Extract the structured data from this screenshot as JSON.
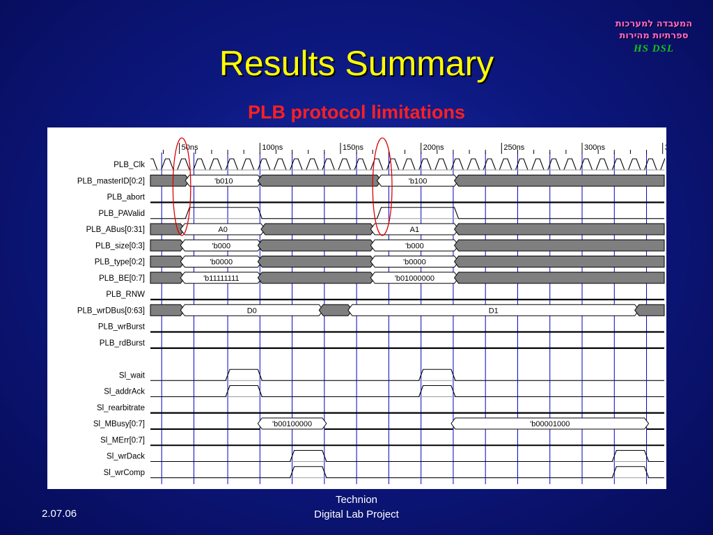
{
  "slide": {
    "title": "Results Summary",
    "subtitle": "PLB protocol limitations"
  },
  "logo": {
    "line1": "המעבדה למערכות",
    "line2": "ספרתיות מהירות",
    "lab_name": "HS DSL"
  },
  "footer": {
    "date": "2.07.06",
    "org_line1": "Technion",
    "org_line2": "Digital Lab Project"
  },
  "colors": {
    "title": "#ffff00",
    "subtitle": "#ff2020",
    "busy_fill": "#7f7f7f",
    "marker": "#0000cc",
    "highlight": "#dd0000"
  },
  "waveform": {
    "time_unit": "ns",
    "time_range": [
      32,
      351
    ],
    "ticks": [
      {
        "t": 50,
        "label": "50ns"
      },
      {
        "t": 100,
        "label": "100ns"
      },
      {
        "t": 150,
        "label": "150ns"
      },
      {
        "t": 200,
        "label": "200ns"
      },
      {
        "t": 250,
        "label": "250ns"
      },
      {
        "t": 300,
        "label": "300ns"
      },
      {
        "t": 350,
        "label": "350n"
      }
    ],
    "clock_period": 10,
    "markers": [
      39,
      59,
      80,
      100,
      120,
      140,
      160,
      180,
      200,
      220,
      240,
      260,
      280,
      300,
      320,
      340
    ],
    "highlights": [
      {
        "t_start": 46,
        "t_end": 57
      },
      {
        "t_start": 170,
        "t_end": 182
      }
    ],
    "signals": [
      {
        "name": "PLB_Clk",
        "type": "clock"
      },
      {
        "name": "PLB_masterID[0:2]",
        "type": "bus",
        "segments": [
          {
            "t0": 32,
            "t1": 55,
            "kind": "busy"
          },
          {
            "t0": 55,
            "t1": 100,
            "kind": "value",
            "label": "'b010"
          },
          {
            "t0": 100,
            "t1": 174,
            "kind": "busy"
          },
          {
            "t0": 174,
            "t1": 222,
            "kind": "value",
            "label": "'b100"
          },
          {
            "t0": 222,
            "t1": 351,
            "kind": "busy"
          }
        ]
      },
      {
        "name": "PLB_abort",
        "type": "bit",
        "points": [
          [
            32,
            0
          ]
        ]
      },
      {
        "name": "PLB_PAValid",
        "type": "bit",
        "points": [
          [
            32,
            0
          ],
          [
            55,
            1
          ],
          [
            100,
            0
          ],
          [
            174,
            1
          ],
          [
            222,
            0
          ]
        ]
      },
      {
        "name": "PLB_ABus[0:31]",
        "type": "bus",
        "segments": [
          {
            "t0": 32,
            "t1": 52,
            "kind": "busy"
          },
          {
            "t0": 52,
            "t1": 102,
            "kind": "value",
            "label": "A0"
          },
          {
            "t0": 102,
            "t1": 170,
            "kind": "busy"
          },
          {
            "t0": 170,
            "t1": 222,
            "kind": "value",
            "label": "A1"
          },
          {
            "t0": 222,
            "t1": 351,
            "kind": "busy"
          }
        ]
      },
      {
        "name": "PLB_size[0:3]",
        "type": "bus",
        "segments": [
          {
            "t0": 32,
            "t1": 52,
            "kind": "busy"
          },
          {
            "t0": 52,
            "t1": 100,
            "kind": "value",
            "label": "'b000"
          },
          {
            "t0": 100,
            "t1": 170,
            "kind": "busy"
          },
          {
            "t0": 170,
            "t1": 222,
            "kind": "value",
            "label": "'b000"
          },
          {
            "t0": 222,
            "t1": 351,
            "kind": "busy"
          }
        ]
      },
      {
        "name": "PLB_type[0:2]",
        "type": "bus",
        "segments": [
          {
            "t0": 32,
            "t1": 52,
            "kind": "busy"
          },
          {
            "t0": 52,
            "t1": 100,
            "kind": "value",
            "label": "'b0000"
          },
          {
            "t0": 100,
            "t1": 170,
            "kind": "busy"
          },
          {
            "t0": 170,
            "t1": 222,
            "kind": "value",
            "label": "'b0000"
          },
          {
            "t0": 222,
            "t1": 351,
            "kind": "busy"
          }
        ]
      },
      {
        "name": "PLB_BE[0:7]",
        "type": "bus",
        "segments": [
          {
            "t0": 32,
            "t1": 52,
            "kind": "busy"
          },
          {
            "t0": 52,
            "t1": 100,
            "kind": "value",
            "label": "'b11111111"
          },
          {
            "t0": 100,
            "t1": 170,
            "kind": "busy"
          },
          {
            "t0": 170,
            "t1": 222,
            "kind": "value",
            "label": "'b01000000"
          },
          {
            "t0": 222,
            "t1": 351,
            "kind": "busy"
          }
        ]
      },
      {
        "name": "PLB_RNW",
        "type": "bit",
        "points": [
          [
            32,
            0
          ]
        ]
      },
      {
        "name": "PLB_wrDBus[0:63]",
        "type": "bus",
        "segments": [
          {
            "t0": 32,
            "t1": 52,
            "kind": "busy"
          },
          {
            "t0": 52,
            "t1": 138,
            "kind": "value",
            "label": "D0"
          },
          {
            "t0": 138,
            "t1": 156,
            "kind": "busy"
          },
          {
            "t0": 156,
            "t1": 334,
            "kind": "value",
            "label": "D1"
          },
          {
            "t0": 334,
            "t1": 351,
            "kind": "busy"
          }
        ]
      },
      {
        "name": "PLB_wrBurst",
        "type": "bit",
        "points": [
          [
            32,
            0
          ]
        ]
      },
      {
        "name": "PLB_rdBurst",
        "type": "bit",
        "points": [
          [
            32,
            0
          ]
        ]
      },
      {
        "name": "",
        "type": "gap"
      },
      {
        "name": "Sl_wait",
        "type": "bit",
        "points": [
          [
            32,
            0
          ],
          [
            80,
            1
          ],
          [
            100,
            0
          ],
          [
            200,
            1
          ],
          [
            220,
            0
          ]
        ]
      },
      {
        "name": "Sl_addrAck",
        "type": "bit",
        "points": [
          [
            32,
            0
          ],
          [
            80,
            1
          ],
          [
            100,
            0
          ],
          [
            200,
            1
          ],
          [
            220,
            0
          ]
        ]
      },
      {
        "name": "Sl_rearbitrate",
        "type": "bit",
        "points": [
          [
            32,
            0
          ]
        ]
      },
      {
        "name": "Sl_MBusy[0:7]",
        "type": "bus",
        "segments": [
          {
            "t0": 32,
            "t1": 100,
            "kind": "zero"
          },
          {
            "t0": 100,
            "t1": 140,
            "kind": "value",
            "label": "'b00100000"
          },
          {
            "t0": 140,
            "t1": 220,
            "kind": "zero"
          },
          {
            "t0": 220,
            "t1": 340,
            "kind": "value",
            "label": "'b00001000"
          },
          {
            "t0": 340,
            "t1": 351,
            "kind": "zero"
          }
        ]
      },
      {
        "name": "Sl_MErr[0:7]",
        "type": "bus",
        "segments": [
          {
            "t0": 32,
            "t1": 351,
            "kind": "zero"
          }
        ]
      },
      {
        "name": "Sl_wrDack",
        "type": "bit",
        "points": [
          [
            32,
            0
          ],
          [
            120,
            1
          ],
          [
            140,
            0
          ],
          [
            320,
            1
          ],
          [
            340,
            0
          ]
        ]
      },
      {
        "name": "Sl_wrComp",
        "type": "bit",
        "points": [
          [
            32,
            0
          ],
          [
            120,
            1
          ],
          [
            140,
            0
          ],
          [
            320,
            1
          ],
          [
            340,
            0
          ]
        ]
      }
    ]
  }
}
